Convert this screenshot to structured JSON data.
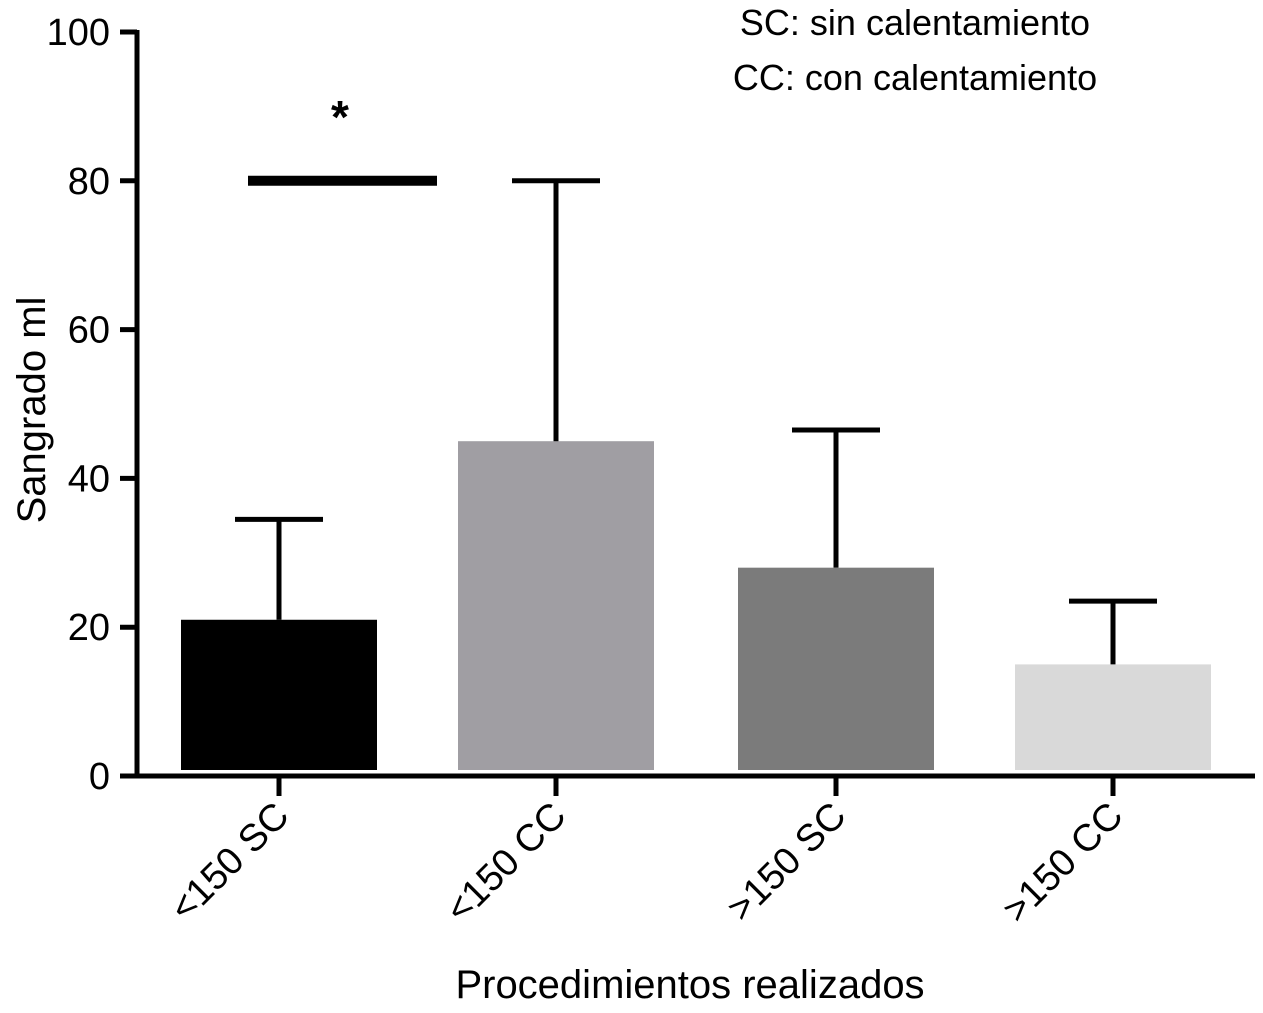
{
  "chart_data": {
    "type": "bar",
    "categories": [
      "<150 SC",
      "<150 CC",
      ">150 SC",
      ">150 CC"
    ],
    "values": [
      21,
      45,
      28,
      15
    ],
    "error_upper": [
      34.5,
      80,
      46.5,
      23.5
    ],
    "colors": [
      "#000000",
      "#a09ea3",
      "#7b7b7b",
      "#d9d9d9"
    ],
    "title": "",
    "xlabel": "Procedimientos realizados",
    "ylabel": "Sangrado ml",
    "ylim": [
      0,
      100
    ],
    "yticks": [
      "0",
      "20",
      "40",
      "60",
      "80",
      "100"
    ],
    "grid": false,
    "notes": [
      "SC: sin calentamiento",
      "CC: con calentamiento"
    ],
    "significance": {
      "symbol": "*",
      "level": 80,
      "spans_categories": [
        "<150 SC"
      ]
    }
  }
}
